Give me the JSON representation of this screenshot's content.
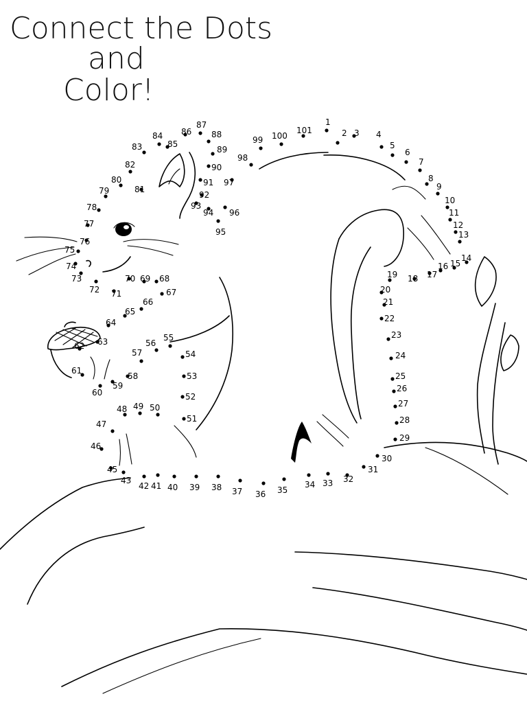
{
  "title": {
    "line1": "Connect the Dots",
    "line2": "and",
    "line3": "Color!"
  },
  "dots": [
    {
      "n": "1"
    },
    {
      "n": "2"
    },
    {
      "n": "3"
    },
    {
      "n": "4"
    },
    {
      "n": "5"
    },
    {
      "n": "6"
    },
    {
      "n": "7"
    },
    {
      "n": "8"
    },
    {
      "n": "9"
    },
    {
      "n": "10"
    },
    {
      "n": "11"
    },
    {
      "n": "12"
    },
    {
      "n": "13"
    },
    {
      "n": "14"
    },
    {
      "n": "15"
    },
    {
      "n": "16"
    },
    {
      "n": "17"
    },
    {
      "n": "18"
    },
    {
      "n": "19"
    },
    {
      "n": "20"
    },
    {
      "n": "21"
    },
    {
      "n": "22"
    },
    {
      "n": "23"
    },
    {
      "n": "24"
    },
    {
      "n": "25"
    },
    {
      "n": "26"
    },
    {
      "n": "27"
    },
    {
      "n": "28"
    },
    {
      "n": "29"
    },
    {
      "n": "30"
    },
    {
      "n": "31"
    },
    {
      "n": "32"
    },
    {
      "n": "33"
    },
    {
      "n": "34"
    },
    {
      "n": "35"
    },
    {
      "n": "36"
    },
    {
      "n": "37"
    },
    {
      "n": "38"
    },
    {
      "n": "39"
    },
    {
      "n": "40"
    },
    {
      "n": "41"
    },
    {
      "n": "42"
    },
    {
      "n": "43"
    },
    {
      "n": "45"
    },
    {
      "n": "46"
    },
    {
      "n": "47"
    },
    {
      "n": "48"
    },
    {
      "n": "49"
    },
    {
      "n": "50"
    },
    {
      "n": "51"
    },
    {
      "n": "52"
    },
    {
      "n": "53"
    },
    {
      "n": "54"
    },
    {
      "n": "55"
    },
    {
      "n": "56"
    },
    {
      "n": "57"
    },
    {
      "n": "58"
    },
    {
      "n": "59"
    },
    {
      "n": "60"
    },
    {
      "n": "61"
    },
    {
      "n": "62"
    },
    {
      "n": "63"
    },
    {
      "n": "64"
    },
    {
      "n": "65"
    },
    {
      "n": "66"
    },
    {
      "n": "67"
    },
    {
      "n": "68"
    },
    {
      "n": "69"
    },
    {
      "n": "70"
    },
    {
      "n": "71"
    },
    {
      "n": "72"
    },
    {
      "n": "73"
    },
    {
      "n": "74"
    },
    {
      "n": "75"
    },
    {
      "n": "76"
    },
    {
      "n": "77"
    },
    {
      "n": "78"
    },
    {
      "n": "79"
    },
    {
      "n": "80"
    },
    {
      "n": "81"
    },
    {
      "n": "82"
    },
    {
      "n": "83"
    },
    {
      "n": "84"
    },
    {
      "n": "85"
    },
    {
      "n": "86"
    },
    {
      "n": "87"
    },
    {
      "n": "88"
    },
    {
      "n": "89"
    },
    {
      "n": "90"
    },
    {
      "n": "91"
    },
    {
      "n": "92"
    },
    {
      "n": "93"
    },
    {
      "n": "94"
    },
    {
      "n": "95"
    },
    {
      "n": "96"
    },
    {
      "n": "97"
    },
    {
      "n": "98"
    },
    {
      "n": "99"
    },
    {
      "n": "100"
    },
    {
      "n": "101"
    }
  ]
}
